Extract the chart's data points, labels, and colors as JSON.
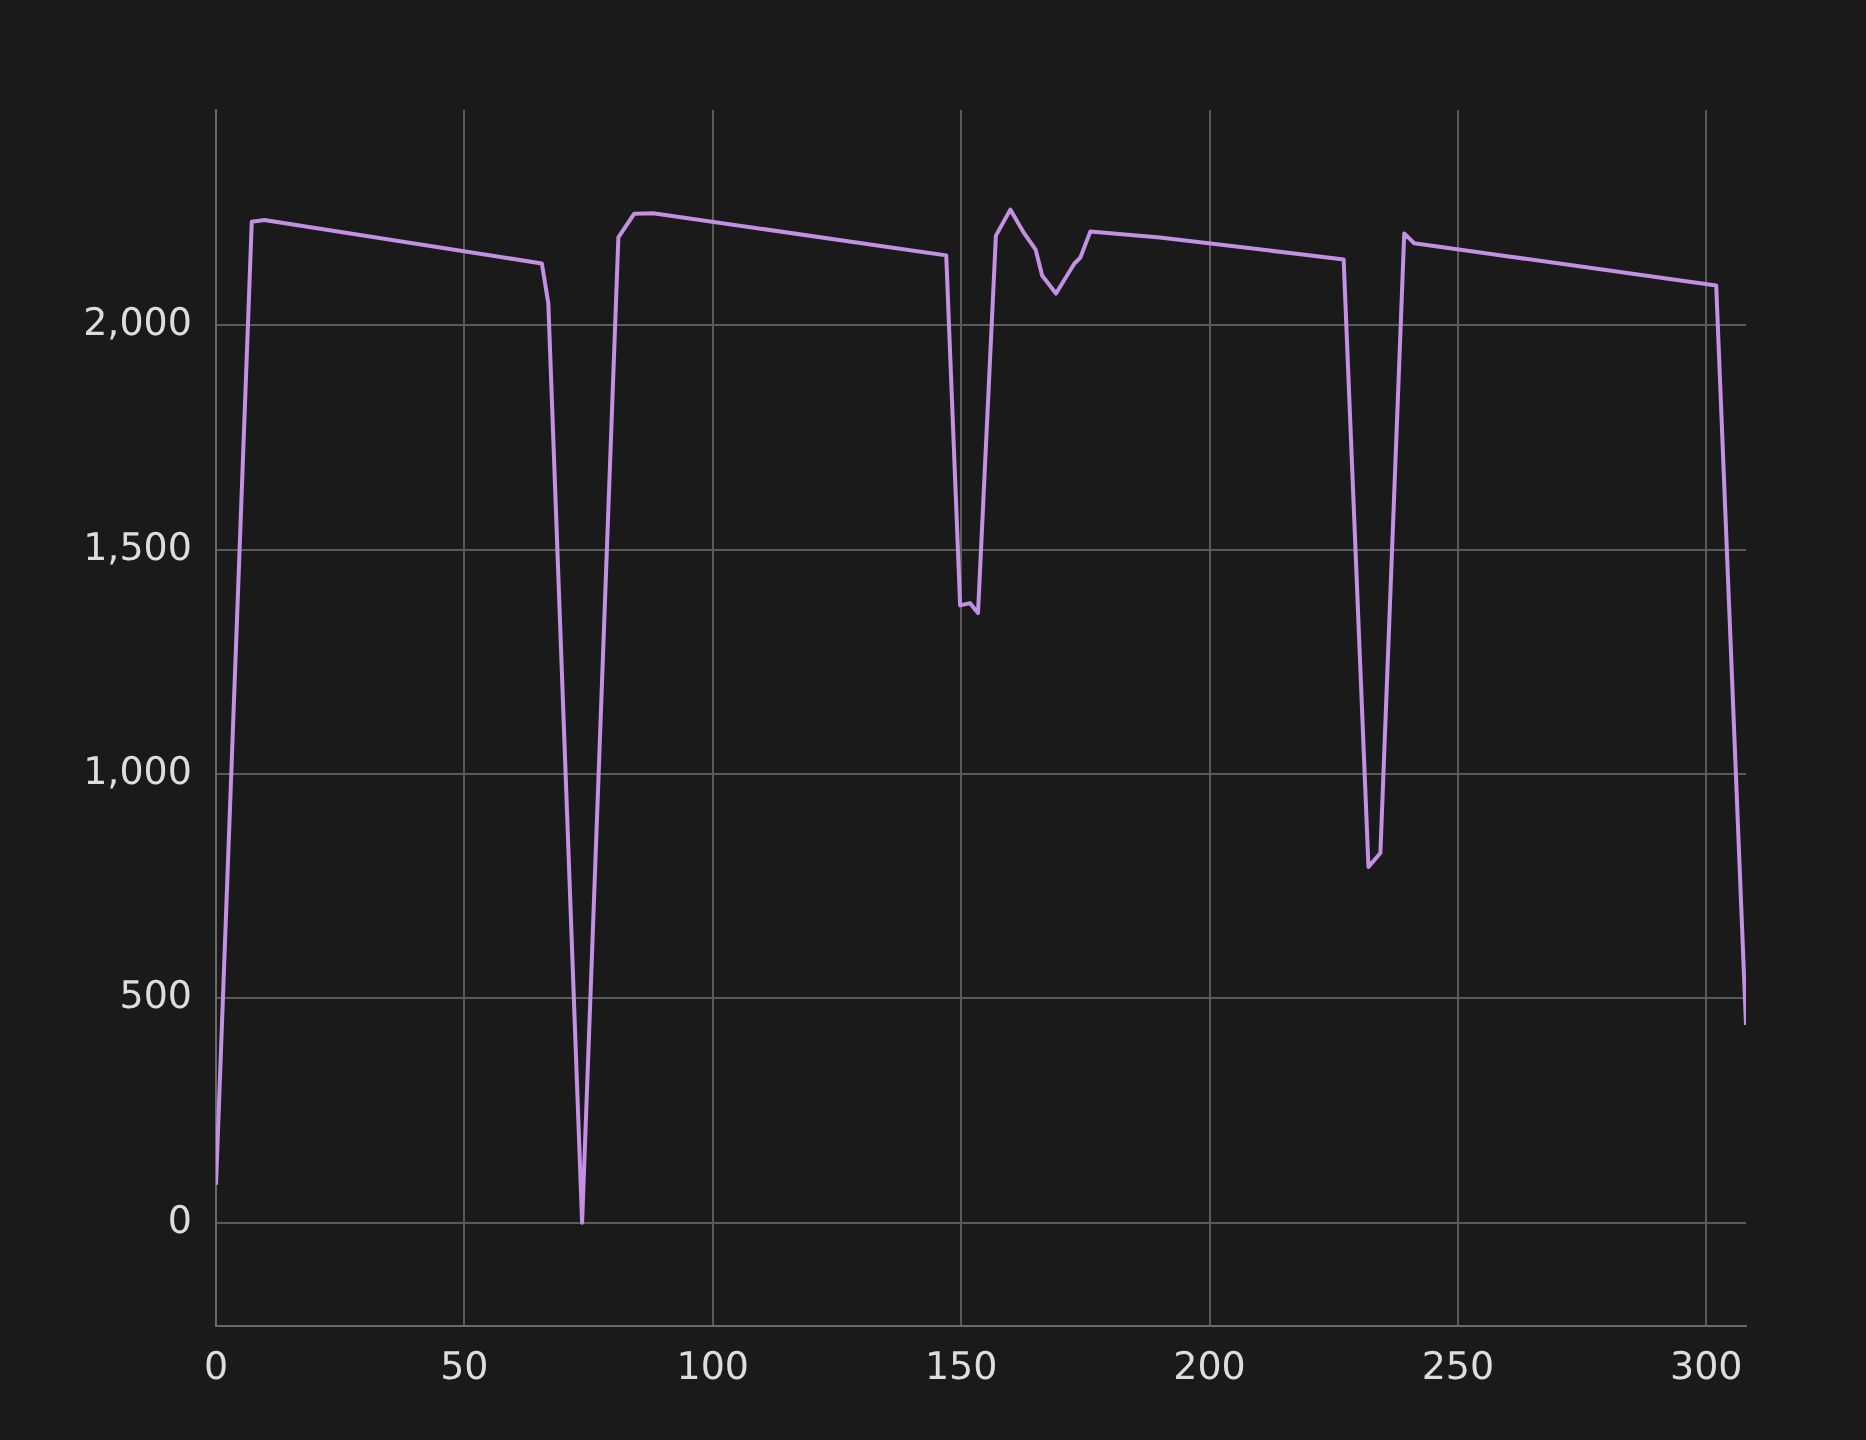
{
  "chart_data": {
    "type": "line",
    "series": [
      {
        "color": "#c490e4",
        "x": [
          0,
          7.2,
          9.7,
          65.6,
          66.9,
          73.7,
          81,
          84.2,
          88,
          147,
          149.8,
          151.8,
          153.4,
          157,
          159.9,
          162.7,
          165,
          166.3,
          169.1,
          172.8,
          174,
          176,
          190,
          227,
          232,
          234.4,
          239.2,
          241.2,
          302,
          308
        ],
        "values": [
          85,
          2231,
          2235,
          2138,
          2049,
          0,
          2196,
          2249,
          2250,
          2156,
          1376,
          1381,
          1359,
          2200,
          2258,
          2205,
          2169,
          2111,
          2071,
          2138,
          2151,
          2209,
          2196,
          2147,
          793,
          824,
          2205,
          2183,
          2089,
          441
        ]
      }
    ],
    "xlim": [
      0,
      308
    ],
    "ylim": [
      -230,
      2480
    ],
    "xticks": [
      0,
      50,
      100,
      150,
      200,
      250,
      300
    ],
    "yticks": [
      0,
      500,
      {
        "value": 1000,
        "label": "1,000"
      },
      {
        "value": 1500,
        "label": "1,500"
      },
      {
        "value": 2000,
        "label": "2,000"
      }
    ],
    "grid": true,
    "legend": false,
    "marker": "none",
    "line_style": "solid"
  }
}
